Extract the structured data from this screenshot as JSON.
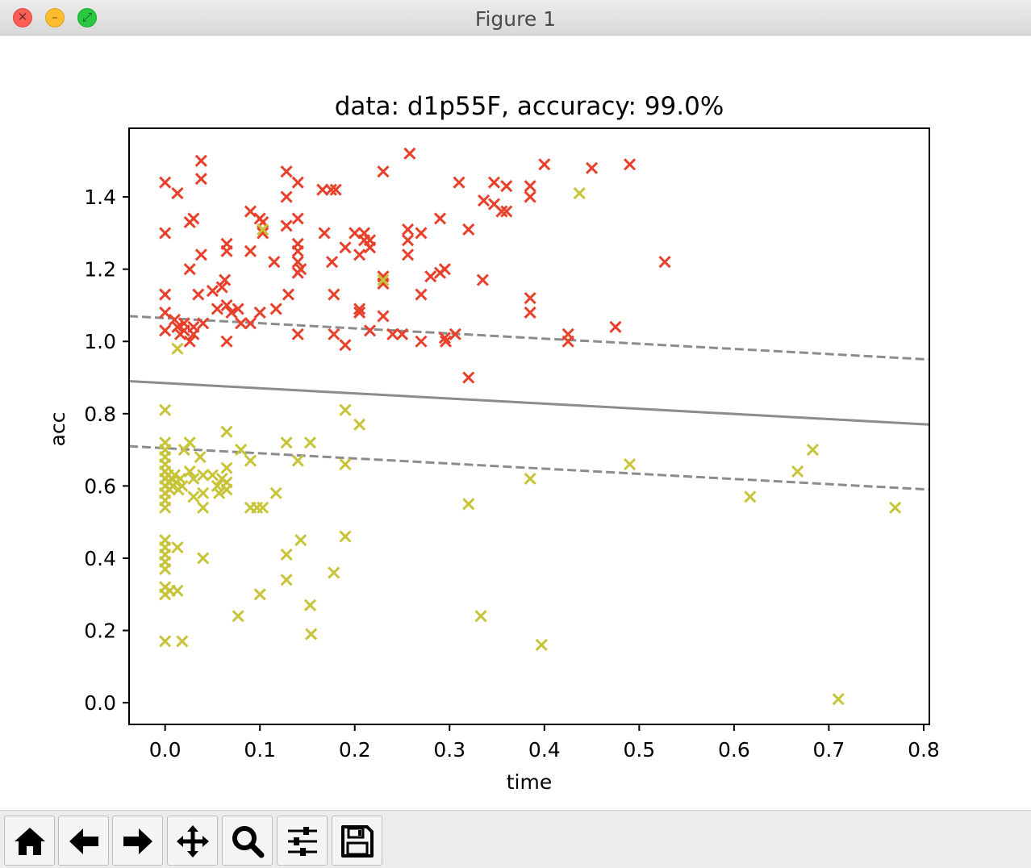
{
  "window": {
    "title": "Figure 1"
  },
  "chart_data": {
    "type": "scatter",
    "title": "data: d1p55F, accuracy: 99.0%",
    "xlabel": "time",
    "ylabel": "acc",
    "xlim": [
      -0.038,
      0.806
    ],
    "ylim": [
      -0.06,
      1.59
    ],
    "xticks": [
      "0.0",
      "0.1",
      "0.2",
      "0.3",
      "0.4",
      "0.5",
      "0.6",
      "0.7",
      "0.8"
    ],
    "yticks": [
      "0.0",
      "0.2",
      "0.4",
      "0.6",
      "0.8",
      "1.0",
      "1.2",
      "1.4"
    ],
    "grid": false,
    "marker": "x",
    "series": [
      {
        "color": "#e8402a",
        "points": [
          [
            0.0,
            1.44
          ],
          [
            0.0,
            1.3
          ],
          [
            0.0,
            1.13
          ],
          [
            0.0,
            1.08
          ],
          [
            0.0,
            1.03
          ],
          [
            0.013,
            1.41
          ],
          [
            0.01,
            1.06
          ],
          [
            0.013,
            1.04
          ],
          [
            0.016,
            1.02
          ],
          [
            0.02,
            1.05
          ],
          [
            0.02,
            1.03
          ],
          [
            0.026,
            1.0
          ],
          [
            0.03,
            1.04
          ],
          [
            0.03,
            1.02
          ],
          [
            0.026,
            1.2
          ],
          [
            0.026,
            1.33
          ],
          [
            0.03,
            1.34
          ],
          [
            0.038,
            1.5
          ],
          [
            0.038,
            1.45
          ],
          [
            0.038,
            1.24
          ],
          [
            0.035,
            1.13
          ],
          [
            0.04,
            1.05
          ],
          [
            0.05,
            1.14
          ],
          [
            0.055,
            1.09
          ],
          [
            0.06,
            1.15
          ],
          [
            0.063,
            1.17
          ],
          [
            0.065,
            1.27
          ],
          [
            0.065,
            1.25
          ],
          [
            0.065,
            1.1
          ],
          [
            0.065,
            1.0
          ],
          [
            0.07,
            1.08
          ],
          [
            0.077,
            1.09
          ],
          [
            0.08,
            1.05
          ],
          [
            0.09,
            1.05
          ],
          [
            0.09,
            1.25
          ],
          [
            0.09,
            1.36
          ],
          [
            0.1,
            1.34
          ],
          [
            0.103,
            1.33
          ],
          [
            0.103,
            1.3
          ],
          [
            0.1,
            1.08
          ],
          [
            0.115,
            1.22
          ],
          [
            0.117,
            1.09
          ],
          [
            0.128,
            1.47
          ],
          [
            0.128,
            1.4
          ],
          [
            0.128,
            1.32
          ],
          [
            0.13,
            1.13
          ],
          [
            0.14,
            1.44
          ],
          [
            0.14,
            1.34
          ],
          [
            0.14,
            1.27
          ],
          [
            0.14,
            1.25
          ],
          [
            0.14,
            1.22
          ],
          [
            0.14,
            1.19
          ],
          [
            0.14,
            1.02
          ],
          [
            0.143,
            1.2
          ],
          [
            0.166,
            1.42
          ],
          [
            0.168,
            1.3
          ],
          [
            0.175,
            1.42
          ],
          [
            0.18,
            1.42
          ],
          [
            0.176,
            1.22
          ],
          [
            0.178,
            1.13
          ],
          [
            0.178,
            1.02
          ],
          [
            0.19,
            1.26
          ],
          [
            0.19,
            0.99
          ],
          [
            0.2,
            1.3
          ],
          [
            0.205,
            1.24
          ],
          [
            0.205,
            1.09
          ],
          [
            0.205,
            1.08
          ],
          [
            0.21,
            1.28
          ],
          [
            0.21,
            1.3
          ],
          [
            0.216,
            1.28
          ],
          [
            0.216,
            1.26
          ],
          [
            0.216,
            1.03
          ],
          [
            0.23,
            1.47
          ],
          [
            0.23,
            1.18
          ],
          [
            0.23,
            1.16
          ],
          [
            0.23,
            1.07
          ],
          [
            0.24,
            1.02
          ],
          [
            0.25,
            1.02
          ],
          [
            0.258,
            1.52
          ],
          [
            0.256,
            1.31
          ],
          [
            0.256,
            1.28
          ],
          [
            0.256,
            1.24
          ],
          [
            0.27,
            1.3
          ],
          [
            0.27,
            1.13
          ],
          [
            0.27,
            1.0
          ],
          [
            0.28,
            1.18
          ],
          [
            0.29,
            1.19
          ],
          [
            0.29,
            1.34
          ],
          [
            0.295,
            1.2
          ],
          [
            0.295,
            1.01
          ],
          [
            0.296,
            1.0
          ],
          [
            0.306,
            1.02
          ],
          [
            0.31,
            1.44
          ],
          [
            0.32,
            1.31
          ],
          [
            0.32,
            0.9
          ],
          [
            0.335,
            1.17
          ],
          [
            0.336,
            1.39
          ],
          [
            0.347,
            1.44
          ],
          [
            0.347,
            1.38
          ],
          [
            0.355,
            1.36
          ],
          [
            0.36,
            1.43
          ],
          [
            0.36,
            1.36
          ],
          [
            0.385,
            1.43
          ],
          [
            0.385,
            1.4
          ],
          [
            0.385,
            1.12
          ],
          [
            0.385,
            1.08
          ],
          [
            0.4,
            1.49
          ],
          [
            0.425,
            1.02
          ],
          [
            0.425,
            1.0
          ],
          [
            0.45,
            1.48
          ],
          [
            0.475,
            1.04
          ],
          [
            0.49,
            1.49
          ],
          [
            0.527,
            1.22
          ]
        ]
      },
      {
        "color": "#c8c43a",
        "points": [
          [
            0.0,
            0.81
          ],
          [
            0.0,
            0.72
          ],
          [
            0.0,
            0.7
          ],
          [
            0.0,
            0.68
          ],
          [
            0.0,
            0.66
          ],
          [
            0.0,
            0.64
          ],
          [
            0.0,
            0.62
          ],
          [
            0.0,
            0.6
          ],
          [
            0.0,
            0.58
          ],
          [
            0.0,
            0.56
          ],
          [
            0.0,
            0.54
          ],
          [
            0.003,
            0.63
          ],
          [
            0.005,
            0.61
          ],
          [
            0.005,
            0.59
          ],
          [
            0.007,
            0.62
          ],
          [
            0.008,
            0.6
          ],
          [
            0.01,
            0.63
          ],
          [
            0.012,
            0.61
          ],
          [
            0.014,
            0.59
          ],
          [
            0.016,
            0.62
          ],
          [
            0.018,
            0.6
          ],
          [
            0.0,
            0.45
          ],
          [
            0.0,
            0.43
          ],
          [
            0.0,
            0.41
          ],
          [
            0.0,
            0.39
          ],
          [
            0.0,
            0.37
          ],
          [
            0.0,
            0.32
          ],
          [
            0.0,
            0.3
          ],
          [
            0.005,
            0.31
          ],
          [
            0.0,
            0.17
          ],
          [
            0.013,
            0.43
          ],
          [
            0.013,
            0.31
          ],
          [
            0.018,
            0.17
          ],
          [
            0.013,
            0.98
          ],
          [
            0.02,
            0.7
          ],
          [
            0.026,
            0.72
          ],
          [
            0.026,
            0.64
          ],
          [
            0.03,
            0.62
          ],
          [
            0.03,
            0.57
          ],
          [
            0.037,
            0.68
          ],
          [
            0.04,
            0.63
          ],
          [
            0.04,
            0.58
          ],
          [
            0.04,
            0.54
          ],
          [
            0.04,
            0.4
          ],
          [
            0.05,
            0.63
          ],
          [
            0.055,
            0.6
          ],
          [
            0.057,
            0.58
          ],
          [
            0.06,
            0.62
          ],
          [
            0.065,
            0.75
          ],
          [
            0.065,
            0.65
          ],
          [
            0.065,
            0.61
          ],
          [
            0.065,
            0.59
          ],
          [
            0.077,
            0.24
          ],
          [
            0.08,
            0.7
          ],
          [
            0.09,
            0.67
          ],
          [
            0.09,
            0.54
          ],
          [
            0.097,
            0.54
          ],
          [
            0.1,
            0.3
          ],
          [
            0.103,
            1.31
          ],
          [
            0.103,
            0.54
          ],
          [
            0.117,
            0.58
          ],
          [
            0.128,
            0.72
          ],
          [
            0.128,
            0.41
          ],
          [
            0.128,
            0.34
          ],
          [
            0.14,
            0.67
          ],
          [
            0.143,
            0.45
          ],
          [
            0.153,
            0.72
          ],
          [
            0.153,
            0.27
          ],
          [
            0.154,
            0.19
          ],
          [
            0.178,
            0.36
          ],
          [
            0.19,
            0.81
          ],
          [
            0.19,
            0.66
          ],
          [
            0.19,
            0.46
          ],
          [
            0.205,
            0.77
          ],
          [
            0.23,
            1.17
          ],
          [
            0.32,
            0.55
          ],
          [
            0.333,
            0.24
          ],
          [
            0.385,
            0.62
          ],
          [
            0.397,
            0.16
          ],
          [
            0.437,
            1.41
          ],
          [
            0.49,
            0.66
          ],
          [
            0.617,
            0.57
          ],
          [
            0.667,
            0.64
          ],
          [
            0.683,
            0.7
          ],
          [
            0.71,
            0.01
          ],
          [
            0.77,
            0.54
          ]
        ]
      }
    ],
    "lines": [
      {
        "style": "solid",
        "color": "#8c8c8c",
        "x": [
          -0.038,
          0.806
        ],
        "y": [
          0.89,
          0.77
        ]
      },
      {
        "style": "dashed",
        "color": "#8c8c8c",
        "x": [
          -0.038,
          0.806
        ],
        "y": [
          1.07,
          0.95
        ]
      },
      {
        "style": "dashed",
        "color": "#8c8c8c",
        "x": [
          -0.038,
          0.806
        ],
        "y": [
          0.71,
          0.59
        ]
      }
    ]
  },
  "toolbar": {
    "buttons": [
      {
        "icon": "home-icon"
      },
      {
        "icon": "back-arrow-icon"
      },
      {
        "icon": "forward-arrow-icon"
      },
      {
        "icon": "pan-move-icon"
      },
      {
        "icon": "zoom-magnifier-icon"
      },
      {
        "icon": "subplots-sliders-icon"
      },
      {
        "icon": "save-disk-icon"
      }
    ]
  }
}
